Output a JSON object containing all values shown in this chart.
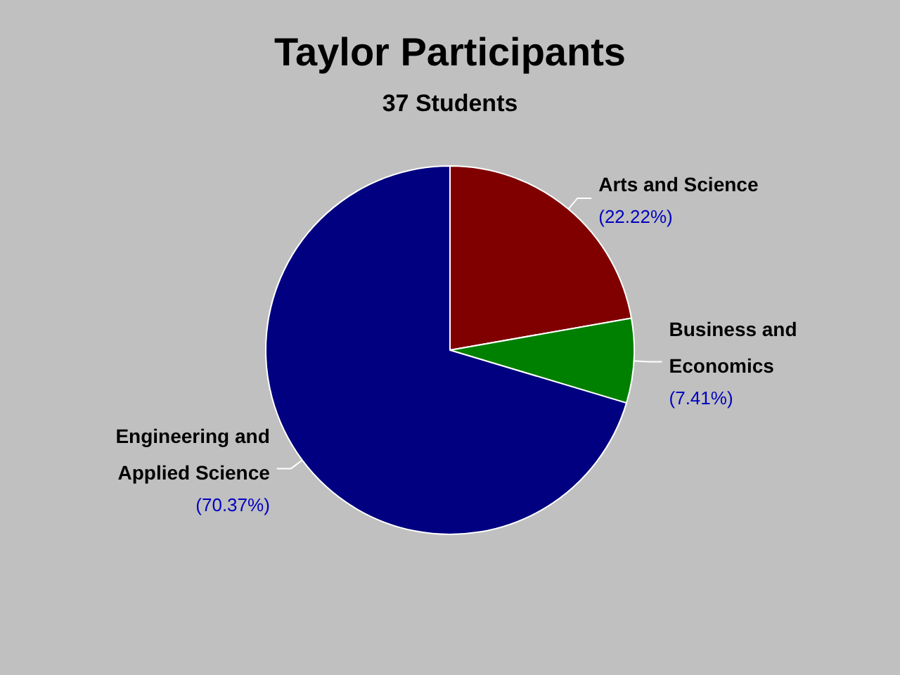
{
  "chart_data": {
    "type": "pie",
    "title": "Taylor Participants",
    "subtitle": "37 Students",
    "categories": [
      "Arts and Science",
      "Business and Economics",
      "Engineering and Applied Science"
    ],
    "values": [
      22.22,
      7.41,
      70.37
    ],
    "colors": [
      "#800000",
      "#008000",
      "#000080"
    ],
    "value_labels": [
      "(22.22%)",
      "(7.41%)",
      "(70.37%)"
    ],
    "legend": false
  }
}
